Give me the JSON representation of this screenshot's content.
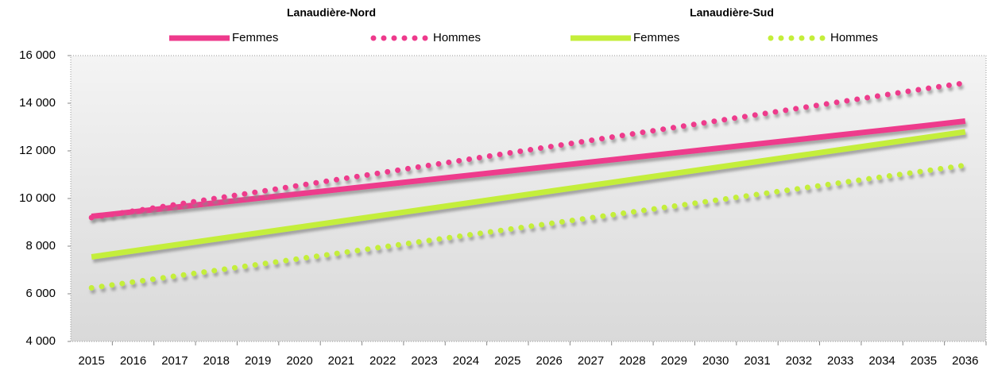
{
  "chart_data": {
    "type": "line",
    "categories": [
      "2015",
      "2016",
      "2017",
      "2018",
      "2019",
      "2020",
      "2021",
      "2022",
      "2023",
      "2024",
      "2025",
      "2026",
      "2027",
      "2028",
      "2029",
      "2030",
      "2031",
      "2032",
      "2033",
      "2034",
      "2035",
      "2036"
    ],
    "ylim": [
      4000,
      16000
    ],
    "yticks": [
      {
        "value": 4000,
        "label": "4 000"
      },
      {
        "value": 6000,
        "label": "6 000"
      },
      {
        "value": 8000,
        "label": "8 000"
      },
      {
        "value": 10000,
        "label": "10 000"
      },
      {
        "value": 12000,
        "label": "12 000"
      },
      {
        "value": 14000,
        "label": "14 000"
      },
      {
        "value": 16000,
        "label": "16 000"
      }
    ],
    "series": [
      {
        "group": "Lanaudière-Nord",
        "name": "Femmes",
        "color": "#ee3a8c",
        "dash": "solid",
        "values": [
          9250,
          9440,
          9630,
          9820,
          10010,
          10200,
          10390,
          10580,
          10770,
          10960,
          11150,
          11340,
          11530,
          11720,
          11910,
          12100,
          12290,
          12480,
          12670,
          12860,
          13050,
          13250
        ]
      },
      {
        "group": "Lanaudière-Nord",
        "name": "Hommes",
        "color": "#ee3a8c",
        "dash": "dot",
        "values": [
          9200,
          9470,
          9740,
          10010,
          10280,
          10550,
          10820,
          11090,
          11360,
          11630,
          11900,
          12170,
          12440,
          12710,
          12980,
          13250,
          13520,
          13790,
          14060,
          14330,
          14600,
          14850
        ]
      },
      {
        "group": "Lanaudière-Sud",
        "name": "Femmes",
        "color": "#c4ee3a",
        "dash": "solid",
        "values": [
          7550,
          7800,
          8050,
          8300,
          8550,
          8800,
          9050,
          9300,
          9550,
          9800,
          10050,
          10300,
          10550,
          10800,
          11050,
          11300,
          11550,
          11800,
          12050,
          12300,
          12550,
          12800
        ]
      },
      {
        "group": "Lanaudière-Sud",
        "name": "Hommes",
        "color": "#c4ee3a",
        "dash": "dot",
        "values": [
          6250,
          6495,
          6740,
          6985,
          7230,
          7475,
          7720,
          7965,
          8210,
          8455,
          8700,
          8945,
          9190,
          9435,
          9680,
          9925,
          10170,
          10415,
          10660,
          10905,
          11150,
          11395
        ]
      }
    ]
  }
}
